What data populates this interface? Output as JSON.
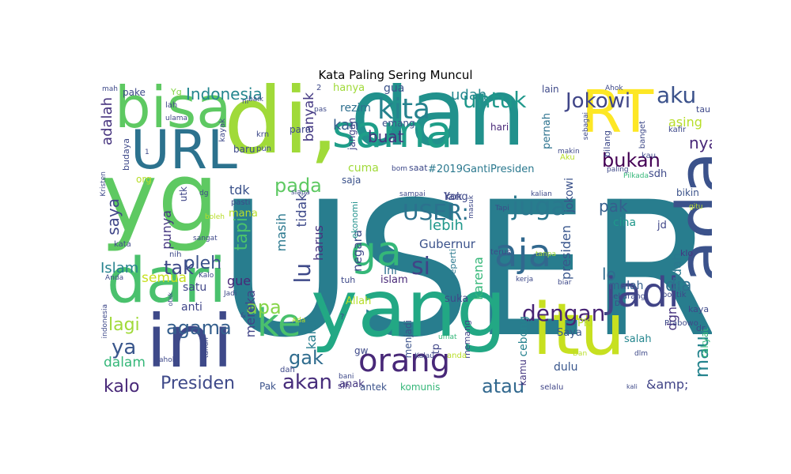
{
  "title": "Kata Paling Sering Muncul",
  "palette": "viridis",
  "words": [
    {
      "text": "USER",
      "weight": 100,
      "color": "#287d8e"
    },
    {
      "text": "dan",
      "weight": 72,
      "color": "#21918c"
    },
    {
      "text": "yg",
      "weight": 70,
      "color": "#5ec962"
    },
    {
      "text": "di,",
      "weight": 66,
      "color": "#a0da39"
    },
    {
      "text": "yang",
      "weight": 64,
      "color": "#22a884"
    },
    {
      "text": "ada",
      "weight": 55,
      "color": "#3b528b"
    },
    {
      "text": "itu",
      "weight": 52,
      "color": "#c7e020"
    },
    {
      "text": "ini",
      "weight": 50,
      "color": "#3e4989"
    },
    {
      "text": "dari",
      "weight": 48,
      "color": "#4ac16d"
    },
    {
      "text": "bisa",
      "weight": 46,
      "color": "#5ec962"
    },
    {
      "text": "RT",
      "weight": 44,
      "color": "#fde725"
    },
    {
      "text": "URL",
      "weight": 44,
      "color": "#2c728e"
    },
    {
      "text": "sama",
      "weight": 38,
      "color": "#1f9e89"
    },
    {
      "text": "jadi",
      "weight": 34,
      "color": "#414487"
    },
    {
      "text": "orang",
      "weight": 30,
      "color": "#482878"
    },
    {
      "text": "ga",
      "weight": 30,
      "color": "#35b779"
    },
    {
      "text": "aja",
      "weight": 28,
      "color": "#31688e"
    },
    {
      "text": "ke",
      "weight": 30,
      "color": "#4ac16d"
    },
    {
      "text": "kita",
      "weight": 22,
      "color": "#26828e"
    },
    {
      "text": "juga",
      "weight": 20,
      "color": "#2a788e"
    },
    {
      "text": "dengan",
      "weight": 18,
      "color": "#482475"
    },
    {
      "text": "untuk",
      "weight": 18,
      "color": "#1f988b"
    },
    {
      "text": "aku",
      "weight": 18,
      "color": "#3b528b"
    },
    {
      "text": "Jokowi",
      "weight": 17,
      "color": "#404688"
    },
    {
      "text": "USER:",
      "weight": 17,
      "color": "#2c728e"
    },
    {
      "text": "akan",
      "weight": 16,
      "color": "#472d7b"
    },
    {
      "text": "agama",
      "weight": 16,
      "color": "#355f8d"
    },
    {
      "text": "lagi",
      "weight": 16,
      "color": "#a0da39"
    },
    {
      "text": "Presiden",
      "weight": 15,
      "color": "#3e4989"
    },
    {
      "text": "atau",
      "weight": 14,
      "color": "#31688e"
    },
    {
      "text": "mau",
      "weight": 14,
      "color": "#25848e"
    },
    {
      "text": "bukan",
      "weight": 14,
      "color": "#440154"
    },
    {
      "text": "apa",
      "weight": 14,
      "color": "#86d549"
    },
    {
      "text": "Indonesia",
      "weight": 13,
      "color": "#24868e"
    },
    {
      "text": "kalo",
      "weight": 13,
      "color": "#482878"
    },
    {
      "text": "gak",
      "weight": 14,
      "color": "#2f6c8e"
    },
    {
      "text": "ya",
      "weight": 14,
      "color": "#39568c"
    },
    {
      "text": "pada",
      "weight": 13,
      "color": "#5ec962"
    },
    {
      "text": "tak",
      "weight": 13,
      "color": "#3e4989"
    },
    {
      "text": "oleh",
      "weight": 13,
      "color": "#3b528b"
    },
    {
      "text": "dia",
      "weight": 13,
      "color": "#2e6f8e"
    },
    {
      "text": "nya",
      "weight": 13,
      "color": "#482878"
    },
    {
      "text": "asing",
      "weight": 10,
      "color": "#b8de29"
    },
    {
      "text": "tapi",
      "weight": 13,
      "color": "#4ac16d"
    },
    {
      "text": "lu",
      "weight": 13,
      "color": "#3e4989"
    },
    {
      "text": "si",
      "weight": 13,
      "color": "#414487"
    },
    {
      "text": "buat",
      "weight": 12,
      "color": "#46337e"
    },
    {
      "text": "adalah",
      "weight": 12,
      "color": "#46337e"
    },
    {
      "text": "banyak",
      "weight": 10,
      "color": "#443983"
    },
    {
      "text": "udah",
      "weight": 10,
      "color": "#24868e"
    },
    {
      "text": "saya",
      "weight": 11,
      "color": "#404688"
    },
    {
      "text": "pak",
      "weight": 11,
      "color": "#355f8d"
    },
    {
      "text": "Islam",
      "weight": 11,
      "color": "#26828e"
    },
    {
      "text": "semua",
      "weight": 10,
      "color": "#c7e020"
    },
    {
      "text": "dalam",
      "weight": 10,
      "color": "#35b779"
    },
    {
      "text": "lebih",
      "weight": 10,
      "color": "#1f988b"
    },
    {
      "text": "tidak",
      "weight": 10,
      "color": "#3e4989"
    },
    {
      "text": "masih",
      "weight": 10,
      "color": "#2a788e"
    },
    {
      "text": "Gubernur",
      "weight": 9,
      "color": "#3b528b"
    },
    {
      "text": "punya",
      "weight": 9,
      "color": "#453781"
    },
    {
      "text": "mereka",
      "weight": 9,
      "color": "#414487"
    },
    {
      "text": "kan",
      "weight": 9,
      "color": "#355f8d"
    },
    {
      "text": "lo",
      "weight": 11,
      "color": "#2f6c8e"
    },
    {
      "text": "sudah",
      "weight": 9,
      "color": "#2a788e"
    },
    {
      "text": "presiden",
      "weight": 9,
      "color": "#39568c"
    },
    {
      "text": "kalau",
      "weight": 8,
      "color": "#287d8e"
    },
    {
      "text": "karena",
      "weight": 8,
      "color": "#35b779"
    },
    {
      "text": "harus",
      "weight": 8,
      "color": "#46337e"
    },
    {
      "text": "negara",
      "weight": 7,
      "color": "#3e4989"
    },
    {
      "text": "tdk",
      "weight": 8,
      "color": "#3b528b"
    },
    {
      "text": "gue",
      "weight": 8,
      "color": "#482878"
    },
    {
      "text": "dgn",
      "weight": 8,
      "color": "#46337e"
    },
    {
      "text": "cuma",
      "weight": 7,
      "color": "#a0da39"
    },
    {
      "text": "cebong",
      "weight": 7,
      "color": "#26828e"
    },
    {
      "text": "jokowi",
      "weight": 7,
      "color": "#3b528b"
    },
    {
      "text": "&amp;",
      "weight": 8,
      "color": "#414487"
    },
    {
      "text": "dulu",
      "weight": 7,
      "color": "#39568c"
    },
    {
      "text": "gua",
      "weight": 7,
      "color": "#3b528b"
    },
    {
      "text": "rezim",
      "weight": 7,
      "color": "#2e6f8e"
    },
    {
      "text": "anak",
      "weight": 6,
      "color": "#453781"
    },
    {
      "text": "Yang",
      "weight": 6,
      "color": "#3e4989"
    },
    {
      "text": "pernah",
      "weight": 6,
      "color": "#2c728e"
    },
    {
      "text": "#2019GantiPresiden",
      "weight": 6,
      "color": "#2a788e"
    },
    {
      "text": "Saya",
      "weight": 6,
      "color": "#39568c"
    },
    {
      "text": "PKI",
      "weight": 6,
      "color": "#b8de29"
    },
    {
      "text": "jangan",
      "weight": 6,
      "color": "#414487"
    },
    {
      "text": "jd",
      "weight": 6,
      "color": "#404688"
    },
    {
      "text": "klo",
      "weight": 5,
      "color": "#453781"
    },
    {
      "text": "sdh",
      "weight": 5,
      "color": "#3e4989"
    },
    {
      "text": "bikin",
      "weight": 5,
      "color": "#3b528b"
    },
    {
      "text": "cina",
      "weight": 6,
      "color": "#1f988b"
    },
    {
      "text": "kok",
      "weight": 6,
      "color": "#404688"
    },
    {
      "text": "saja",
      "weight": 5,
      "color": "#3b528b"
    },
    {
      "text": "mana",
      "weight": 6,
      "color": "#b8de29"
    },
    {
      "text": "hanya",
      "weight": 6,
      "color": "#a0da39"
    },
    {
      "text": "emang",
      "weight": 5,
      "color": "#3b528b"
    },
    {
      "text": "hari",
      "weight": 5,
      "color": "#482878"
    },
    {
      "text": "lain",
      "weight": 5,
      "color": "#3e4989"
    },
    {
      "text": "malah",
      "weight": 6,
      "color": "#355f8d"
    },
    {
      "text": "rakyat",
      "weight": 5,
      "color": "#35b779"
    },
    {
      "text": "salah",
      "weight": 5,
      "color": "#24868e"
    },
    {
      "text": "Allah",
      "weight": 6,
      "color": "#b8de29"
    },
    {
      "text": "suka",
      "weight": 6,
      "color": "#3e4989"
    },
    {
      "text": "satu",
      "weight": 6,
      "color": "#404688"
    },
    {
      "text": "anti",
      "weight": 6,
      "color": "#404688"
    },
    {
      "text": "ekonomi",
      "weight": 5,
      "color": "#21918c"
    },
    {
      "text": "seperti",
      "weight": 5,
      "color": "#2a788e"
    },
    {
      "text": "islam",
      "weight": 5,
      "color": "#482878"
    },
    {
      "text": "Ini",
      "weight": 6,
      "color": "#2e6f8e"
    },
    {
      "text": "tuh",
      "weight": 4,
      "color": "#3e4989"
    },
    {
      "text": "menjadi",
      "weight": 5,
      "color": "#3b528b"
    },
    {
      "text": "memang",
      "weight": 4,
      "color": "#404688"
    },
    {
      "text": "tp",
      "weight": 5,
      "color": "#404688"
    },
    {
      "text": "kamu",
      "weight": 4,
      "color": "#453781"
    },
    {
      "text": "antek",
      "weight": 5,
      "color": "#3b528b"
    },
    {
      "text": "komunis",
      "weight": 5,
      "color": "#35b779"
    },
    {
      "text": "sih",
      "weight": 5,
      "color": "#453781"
    },
    {
      "text": "gw",
      "weight": 5,
      "color": "#3e4989"
    },
    {
      "text": "Pak",
      "weight": 5,
      "color": "#3b528b"
    },
    {
      "text": "selalu",
      "weight": 4,
      "color": "#404688"
    },
    {
      "text": "dah",
      "weight": 4,
      "color": "#3e4989"
    },
    {
      "text": "bani",
      "weight": 3,
      "color": "#3e4989"
    },
    {
      "text": "umat",
      "weight": 3,
      "color": "#35b779"
    },
    {
      "text": "anda",
      "weight": 4,
      "color": "#b8de29"
    },
    {
      "text": "Dan",
      "weight": 3,
      "color": "#b8de29"
    },
    {
      "text": "dr",
      "weight": 4,
      "color": "#3e4989"
    },
    {
      "text": "kaya",
      "weight": 4,
      "color": "#3e4989"
    },
    {
      "text": "politik",
      "weight": 3,
      "color": "#3e4989"
    },
    {
      "text": "Prabowo",
      "weight": 4,
      "color": "#3e4989"
    },
    {
      "text": "sekarang",
      "weight": 4,
      "color": "#3e4989"
    },
    {
      "text": "Di",
      "weight": 3,
      "color": "#3e4989"
    },
    {
      "text": "biar",
      "weight": 3,
      "color": "#3e4989"
    },
    {
      "text": "kerja",
      "weight": 3,
      "color": "#3e4989"
    },
    {
      "text": "terus",
      "weight": 4,
      "color": "#3e4989"
    },
    {
      "text": "tanpa",
      "weight": 3,
      "color": "#a0da39"
    },
    {
      "text": "pake",
      "weight": 5,
      "color": "#3e4989"
    },
    {
      "text": "Yg",
      "weight": 4,
      "color": "#86d549"
    },
    {
      "text": "mah",
      "weight": 3,
      "color": "#3e4989"
    },
    {
      "text": "ulama",
      "weight": 3,
      "color": "#404688"
    },
    {
      "text": "lah",
      "weight": 4,
      "color": "#404688"
    },
    {
      "text": "baik",
      "weight": 3,
      "color": "#3e4989"
    },
    {
      "text": "ni",
      "weight": 3,
      "color": "#3e4989"
    },
    {
      "text": "pas",
      "weight": 3,
      "color": "#3e4989"
    },
    {
      "text": "tau",
      "weight": 4,
      "color": "#3e4989"
    },
    {
      "text": "Ahok",
      "weight": 3,
      "color": "#3e4989"
    },
    {
      "text": "sebagai",
      "weight": 3,
      "color": "#3e4989"
    },
    {
      "text": "banget",
      "weight": 3,
      "color": "#3e4989"
    },
    {
      "text": "kafir",
      "weight": 4,
      "color": "#3e4989"
    },
    {
      "text": "bilang",
      "weight": 4,
      "color": "#3e4989"
    },
    {
      "text": "kau",
      "weight": 3,
      "color": "#3e4989"
    },
    {
      "text": "Pilkada",
      "weight": 3,
      "color": "#35b779"
    },
    {
      "text": "paling",
      "weight": 3,
      "color": "#3e4989"
    },
    {
      "text": "makin",
      "weight": 3,
      "color": "#3e4989"
    },
    {
      "text": "Aku",
      "weight": 3,
      "color": "#b8de29"
    },
    {
      "text": "bom",
      "weight": 3,
      "color": "#3e4989"
    },
    {
      "text": "saat",
      "weight": 4,
      "color": "#3e4989"
    },
    {
      "text": "pun",
      "weight": 4,
      "color": "#3e4989"
    },
    {
      "text": "krn",
      "weight": 4,
      "color": "#3e4989"
    },
    {
      "text": "kayak",
      "weight": 4,
      "color": "#3e4989"
    },
    {
      "text": "baru",
      "weight": 5,
      "color": "#3e4989"
    },
    {
      "text": "budaya",
      "weight": 4,
      "color": "#3e4989"
    },
    {
      "text": "org",
      "weight": 5,
      "color": "#b8de29"
    },
    {
      "text": "utk",
      "weight": 5,
      "color": "#404688"
    },
    {
      "text": "dg",
      "weight": 3,
      "color": "#3e4989"
    },
    {
      "text": "pasti",
      "weight": 4,
      "color": "#3e4989"
    },
    {
      "text": "siapa",
      "weight": 3,
      "color": "#3e4989"
    },
    {
      "text": "sampai",
      "weight": 3,
      "color": "#3e4989"
    },
    {
      "text": "boleh",
      "weight": 3,
      "color": "#b8de29"
    },
    {
      "text": "sangat",
      "weight": 3,
      "color": "#3e4989"
    },
    {
      "text": "kata",
      "weight": 3,
      "color": "#3e4989"
    },
    {
      "text": "nih",
      "weight": 3,
      "color": "#3e4989"
    },
    {
      "text": "Kalo",
      "weight": 3,
      "color": "#3e4989"
    },
    {
      "text": "Anda",
      "weight": 3,
      "color": "#3e4989"
    },
    {
      "text": "Jadi",
      "weight": 3,
      "color": "#3e4989"
    },
    {
      "text": "otak",
      "weight": 3,
      "color": "#3e4989"
    },
    {
      "text": "indonesia",
      "weight": 3,
      "color": "#3e4989"
    },
    {
      "text": "Kristen",
      "weight": 3,
      "color": "#3e4989"
    },
    {
      "text": "ahok",
      "weight": 3,
      "color": "#3e4989"
    },
    {
      "text": "tahun",
      "weight": 3,
      "color": "#3e4989"
    },
    {
      "text": "kalian",
      "weight": 3,
      "color": "#3e4989"
    },
    {
      "text": "masuk",
      "weight": 3,
      "color": "#3e4989"
    },
    {
      "text": "Tapi",
      "weight": 3,
      "color": "#3e4989"
    },
    {
      "text": "gitu",
      "weight": 3,
      "color": "#b8de29"
    },
    {
      "text": "dlm",
      "weight": 3,
      "color": "#3e4989"
    },
    {
      "text": "kali",
      "weight": 3,
      "color": "#3e4989"
    },
    {
      "text": "Kalau",
      "weight": 3,
      "color": "#3e4989"
    },
    {
      "text": "para",
      "weight": 5,
      "color": "#3e4989"
    },
    {
      "text": "Ada",
      "weight": 3,
      "color": "#b8de29"
    },
    {
      "text": "1",
      "weight": 3,
      "color": "#3e4989"
    },
    {
      "text": "2",
      "weight": 3,
      "color": "#3e4989"
    },
    {
      "text": "?",
      "weight": 3,
      "color": "#3e4989"
    },
    {
      "text": "&",
      "weight": 3,
      "color": "#3e4989"
    }
  ]
}
